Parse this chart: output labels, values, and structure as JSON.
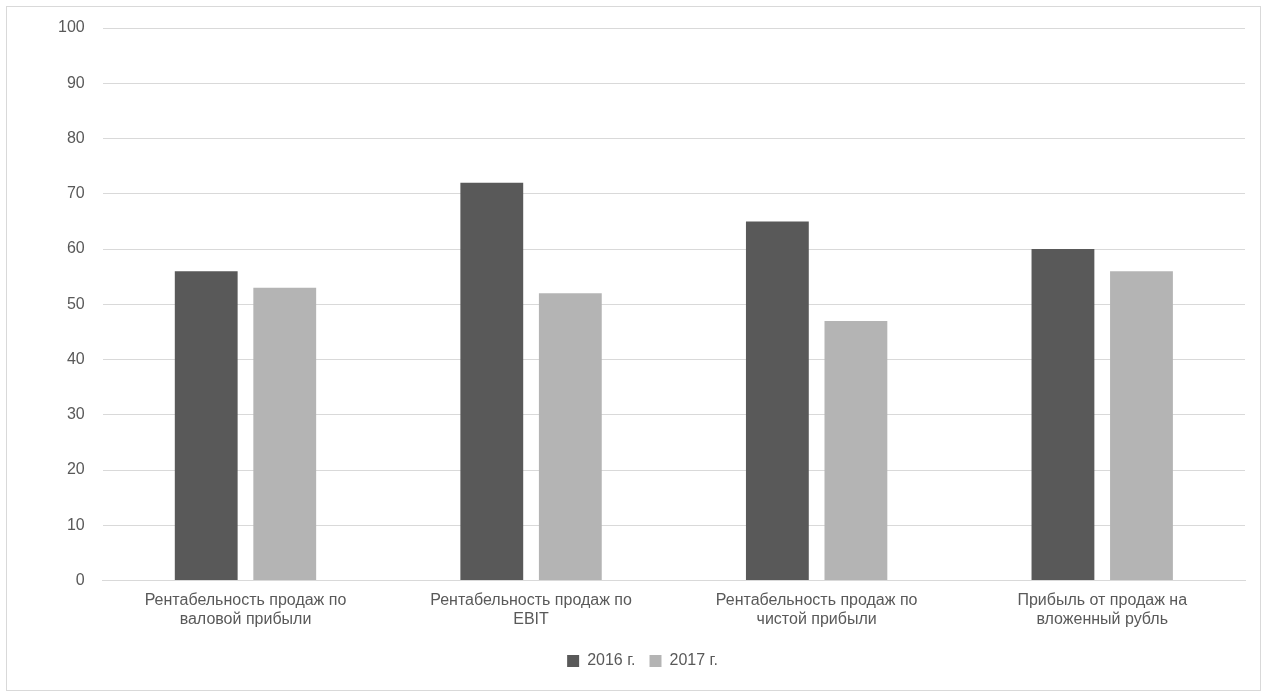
{
  "chart_data": {
    "type": "bar",
    "categories": [
      "Рентабельность продаж по валовой прибыли",
      "Рентабельность продаж по EBIT",
      "Рентабельность продаж по чистой прибыли",
      "Прибыль от продаж на вложенный рубль"
    ],
    "series": [
      {
        "name": "2016 г.",
        "color": "#595959",
        "values": [
          56,
          72,
          65,
          60
        ]
      },
      {
        "name": "2017 г.",
        "color": "#b4b4b4",
        "values": [
          53,
          52,
          47,
          56
        ]
      }
    ],
    "ylim": [
      0,
      100
    ],
    "yticks": [
      0,
      10,
      20,
      30,
      40,
      50,
      60,
      70,
      80,
      90,
      100
    ],
    "grid": "y",
    "legend": "bottom"
  }
}
